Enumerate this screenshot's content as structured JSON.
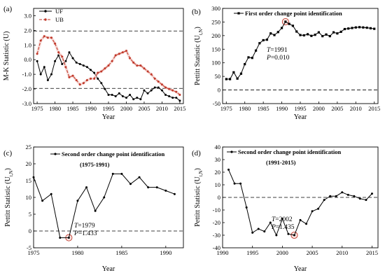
{
  "chart_data": [
    {
      "type": "line",
      "panel": "(a)",
      "xlabel": "Year",
      "ylabel": "M-K Statistic (U)",
      "xlim": [
        1974,
        2016
      ],
      "ylim": [
        -3.0,
        3.5
      ],
      "xticks": [
        1975,
        1980,
        1985,
        1990,
        1995,
        2000,
        2005,
        2010,
        2015
      ],
      "yticks": [
        -3.0,
        -2.0,
        -1.0,
        0.0,
        1.0,
        2.0,
        3.0
      ],
      "xtick_labels": [
        "1975",
        "1980",
        "1985",
        "1990",
        "1995",
        "2000",
        "2005",
        "2010",
        "2015"
      ],
      "ytick_labels": [
        "-3.0",
        "-2.0",
        "-1.0",
        "0.0",
        "1.0",
        "2.0",
        "3.0"
      ],
      "reference_lines": [
        1.96,
        -1.96
      ],
      "legend_position": "top-left",
      "series": [
        {
          "name": "UF",
          "color": "#000000",
          "marker": "dot",
          "x": [
            1975,
            1976,
            1977,
            1978,
            1979,
            1980,
            1981,
            1982,
            1983,
            1984,
            1985,
            1986,
            1987,
            1988,
            1989,
            1990,
            1991,
            1992,
            1993,
            1994,
            1995,
            1996,
            1997,
            1998,
            1999,
            2000,
            2001,
            2002,
            2003,
            2004,
            2005,
            2006,
            2007,
            2008,
            2009,
            2010,
            2011,
            2012,
            2013,
            2014,
            2015
          ],
          "values": [
            -0.1,
            -1.0,
            -0.5,
            -1.4,
            -1.0,
            -0.1,
            0.3,
            -0.3,
            -0.1,
            0.5,
            0.1,
            -0.2,
            -0.3,
            -0.4,
            -0.5,
            -0.7,
            -0.9,
            -1.3,
            -1.6,
            -2.0,
            -2.4,
            -2.4,
            -2.5,
            -2.3,
            -2.5,
            -2.6,
            -2.4,
            -2.7,
            -2.6,
            -2.7,
            -2.1,
            -2.3,
            -2.1,
            -1.9,
            -1.9,
            -2.1,
            -2.4,
            -2.5,
            -2.6,
            -2.6,
            -2.8
          ]
        },
        {
          "name": "UB",
          "color": "#c0392b",
          "marker": "dot",
          "x": [
            1975,
            1976,
            1977,
            1978,
            1979,
            1980,
            1981,
            1982,
            1983,
            1984,
            1985,
            1986,
            1987,
            1988,
            1989,
            1990,
            1991,
            1992,
            1993,
            1994,
            1995,
            1996,
            1997,
            1998,
            1999,
            2000,
            2001,
            2002,
            2003,
            2004,
            2005,
            2006,
            2007,
            2008,
            2009,
            2010,
            2011,
            2012,
            2013,
            2014,
            2015
          ],
          "values": [
            0.4,
            1.3,
            1.6,
            1.5,
            1.5,
            1.1,
            0.5,
            0.2,
            -0.5,
            -1.2,
            -1.1,
            -1.4,
            -1.7,
            -1.6,
            -1.4,
            -1.3,
            -1.3,
            -0.9,
            -0.8,
            -0.6,
            -0.4,
            -0.1,
            0.3,
            0.4,
            0.5,
            0.6,
            0.1,
            -0.2,
            -0.4,
            -0.4,
            -0.6,
            -0.8,
            -1.0,
            -1.3,
            -1.5,
            -1.7,
            -1.9,
            -2.0,
            -2.1,
            -2.2,
            -2.4
          ]
        }
      ]
    },
    {
      "type": "line",
      "panel": "(b)",
      "title": "First order change point identification",
      "xlabel": "Year",
      "ylabel": "Pettitt Statistic (U",
      "ylabel_sub": "t,N",
      "xlim": [
        1974,
        2016
      ],
      "ylim": [
        -50,
        300
      ],
      "xticks": [
        1975,
        1980,
        1985,
        1990,
        1995,
        2000,
        2005,
        2010,
        2015
      ],
      "yticks": [
        -50,
        0,
        50,
        100,
        150,
        200,
        250,
        300
      ],
      "xtick_labels": [
        "1975",
        "1980",
        "1985",
        "1990",
        "1995",
        "2000",
        "2005",
        "2010",
        "2015"
      ],
      "ytick_labels": [
        "-50",
        "0",
        "50",
        "100",
        "150",
        "200",
        "250",
        "300"
      ],
      "reference_lines": [
        0
      ],
      "annotation": {
        "T": "1991",
        "P": "0.010"
      },
      "highlight": {
        "x": 1991,
        "y": 251
      },
      "series": [
        {
          "color": "#000000",
          "marker": "square",
          "x": [
            1975,
            1976,
            1977,
            1978,
            1979,
            1980,
            1981,
            1982,
            1983,
            1984,
            1985,
            1986,
            1987,
            1988,
            1989,
            1990,
            1991,
            1992,
            1993,
            1994,
            1995,
            1996,
            1997,
            1998,
            1999,
            2000,
            2001,
            2002,
            2003,
            2004,
            2005,
            2006,
            2007,
            2008,
            2009,
            2010,
            2011,
            2012,
            2013,
            2014,
            2015
          ],
          "values": [
            40,
            40,
            65,
            42,
            60,
            95,
            120,
            118,
            145,
            172,
            183,
            185,
            208,
            202,
            213,
            228,
            251,
            243,
            236,
            215,
            202,
            201,
            205,
            199,
            203,
            212,
            198,
            204,
            198,
            212,
            208,
            214,
            224,
            226,
            228,
            230,
            231,
            230,
            229,
            227,
            225
          ]
        }
      ]
    },
    {
      "type": "line",
      "panel": "(c)",
      "title": "Second order change point identification",
      "subtitle": "(1975-1991)",
      "xlabel": "Year",
      "ylabel": "Pettitt Statistic (U",
      "ylabel_sub": "t,N",
      "xlim": [
        1975,
        1992
      ],
      "ylim": [
        -5,
        25
      ],
      "xticks": [
        1975,
        1980,
        1985,
        1990
      ],
      "yticks": [
        -5,
        0,
        5,
        10,
        15,
        20,
        25
      ],
      "xtick_labels": [
        "1975",
        "1980",
        "1985",
        "1990"
      ],
      "ytick_labels": [
        "-5",
        "0",
        "5",
        "10",
        "15",
        "20",
        "25"
      ],
      "reference_lines": [
        0
      ],
      "annotation": {
        "T": "1979",
        "P": "1.433"
      },
      "highlight": {
        "x": 1979,
        "y": -2
      },
      "series": [
        {
          "color": "#000000",
          "marker": "dot",
          "x": [
            1975,
            1976,
            1977,
            1978,
            1979,
            1980,
            1981,
            1982,
            1983,
            1984,
            1985,
            1986,
            1987,
            1988,
            1989,
            1990,
            1991
          ],
          "values": [
            16,
            9,
            11,
            -2,
            -2,
            9,
            13,
            6,
            10,
            17,
            17,
            14,
            16,
            13,
            13,
            12,
            11
          ]
        }
      ]
    },
    {
      "type": "line",
      "panel": "(d)",
      "title": "Second order change point identification",
      "subtitle": "(1991-2015)",
      "xlabel": "Year",
      "ylabel": "Pettitt Statistic (U",
      "ylabel_sub": "t,N",
      "xlim": [
        1990,
        2016
      ],
      "ylim": [
        -40,
        40
      ],
      "xticks": [
        1990,
        1995,
        2000,
        2005,
        2010,
        2015
      ],
      "yticks": [
        -40,
        -30,
        -20,
        -10,
        0,
        10,
        20,
        30,
        40
      ],
      "xtick_labels": [
        "1990",
        "1995",
        "2000",
        "2005",
        "2010",
        "2015"
      ],
      "ytick_labels": [
        "-40",
        "-30",
        "-20",
        "-10",
        "0",
        "10",
        "20",
        "30",
        "40"
      ],
      "reference_lines": [
        0
      ],
      "annotation": {
        "T": "2002",
        "P": "1.435"
      },
      "highlight": {
        "x": 2002,
        "y": -30
      },
      "series": [
        {
          "color": "#000000",
          "marker": "dot",
          "x": [
            1991,
            1992,
            1993,
            1994,
            1995,
            1996,
            1997,
            1998,
            1999,
            2000,
            2001,
            2002,
            2003,
            2004,
            2005,
            2006,
            2007,
            2008,
            2009,
            2010,
            2011,
            2012,
            2013,
            2014,
            2015
          ],
          "values": [
            22,
            11,
            11,
            -8,
            -28,
            -25,
            -27,
            -20,
            -30,
            -17,
            -29,
            -30,
            -18,
            -21,
            -11,
            -9,
            -2,
            1,
            1,
            4,
            2,
            1,
            -1,
            -2,
            3
          ]
        }
      ]
    }
  ]
}
